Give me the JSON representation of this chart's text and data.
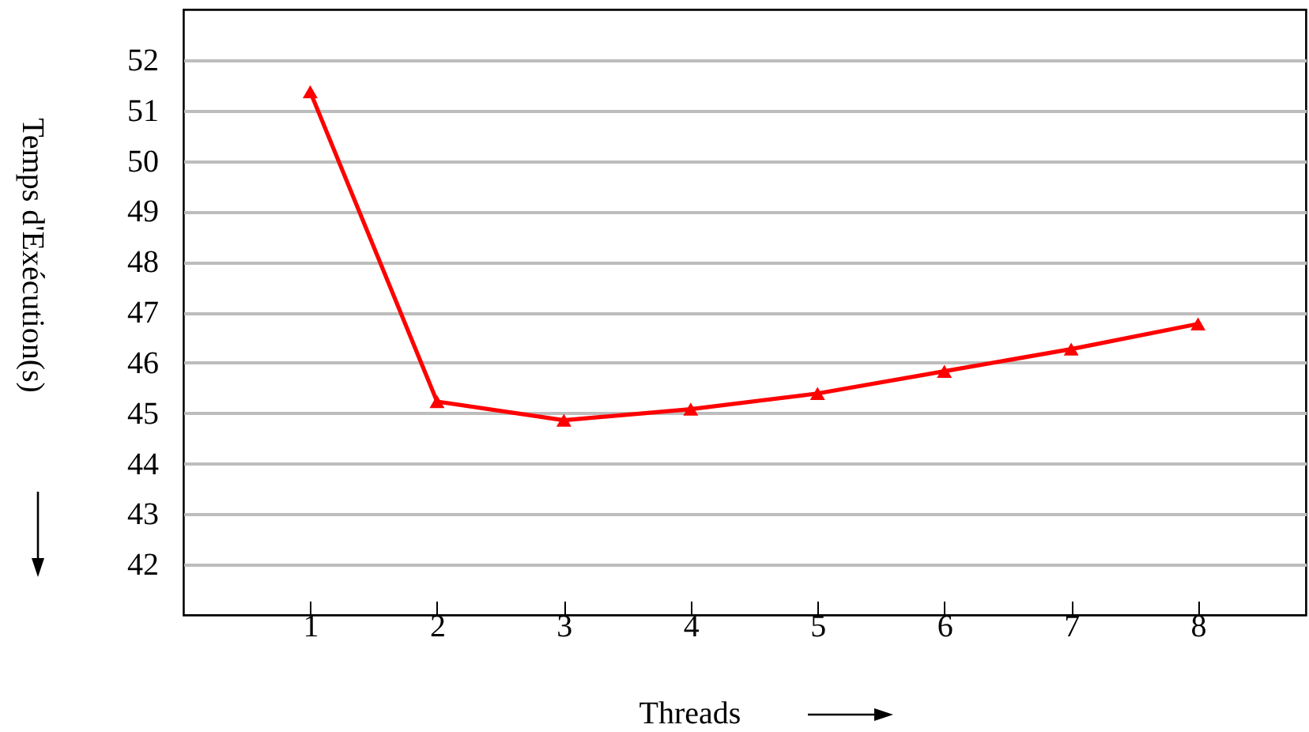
{
  "chart_data": {
    "type": "line",
    "xlabel": "Threads",
    "ylabel": "Temps d'Exécution(s)",
    "x": [
      1,
      2,
      3,
      4,
      5,
      6,
      7,
      8
    ],
    "series": [
      {
        "color": "#ff0000",
        "values": [
          51.37,
          45.23,
          44.86,
          45.08,
          45.39,
          45.83,
          46.27,
          46.77
        ]
      }
    ],
    "xlim": [
      0,
      8.85
    ],
    "xticks": [
      1,
      2,
      3,
      4,
      5,
      6,
      7,
      8
    ],
    "ylim": [
      41,
      53
    ],
    "yticks": [
      42,
      43,
      44,
      45,
      46,
      47,
      48,
      49,
      50,
      51,
      52
    ],
    "grid": "y",
    "marker": "triangle",
    "line_style": "solid"
  }
}
